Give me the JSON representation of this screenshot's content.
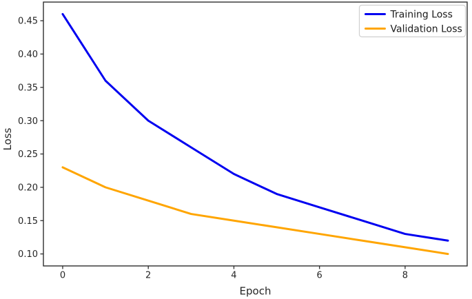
{
  "figure": {
    "background": "#ffffff",
    "frame_color": "#2e2e2e",
    "tick_color": "#2e2e2e",
    "text_color": "#262626"
  },
  "legend": {
    "border_color": "#d0d0d0",
    "background": "#ffffff",
    "position": "upper right"
  },
  "chart_data": {
    "type": "line",
    "title": "",
    "xlabel": "Epoch",
    "ylabel": "Loss",
    "x": [
      0,
      1,
      2,
      3,
      4,
      5,
      6,
      7,
      8,
      9
    ],
    "series": [
      {
        "name": "Training Loss",
        "color": "#0000f0",
        "values": [
          0.46,
          0.36,
          0.3,
          0.26,
          0.22,
          0.19,
          0.17,
          0.15,
          0.13,
          0.12
        ]
      },
      {
        "name": "Validation Loss",
        "color": "#ffa500",
        "values": [
          0.23,
          0.2,
          0.18,
          0.16,
          0.15,
          0.14,
          0.13,
          0.12,
          0.11,
          0.1
        ]
      }
    ],
    "xlim": [
      -0.45,
      9.45
    ],
    "ylim": [
      0.082,
      0.478
    ],
    "xticks": [
      0,
      2,
      4,
      6,
      8
    ],
    "xtick_labels": [
      "0",
      "2",
      "4",
      "6",
      "8"
    ],
    "yticks": [
      0.1,
      0.15,
      0.2,
      0.25,
      0.3,
      0.35,
      0.4,
      0.45
    ],
    "ytick_labels": [
      "0.10",
      "0.15",
      "0.20",
      "0.25",
      "0.30",
      "0.35",
      "0.40",
      "0.45"
    ],
    "grid": false,
    "legend_position": "upper right",
    "line_width": 3
  }
}
